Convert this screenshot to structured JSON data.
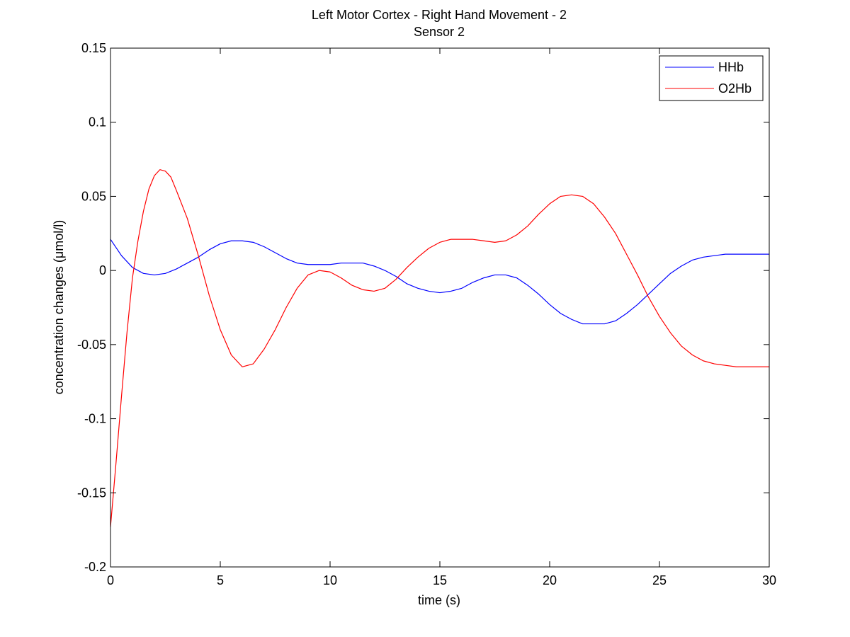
{
  "chart_data": {
    "type": "line",
    "title": "Left Motor Cortex - Right Hand Movement - 2",
    "subtitle": "Sensor 2",
    "xlabel": "time (s)",
    "ylabel": "concentration changes (μmol/l)",
    "xlim": [
      0,
      30
    ],
    "ylim": [
      -0.2,
      0.15
    ],
    "xticks": [
      0,
      5,
      10,
      15,
      20,
      25,
      30
    ],
    "xtick_labels": [
      "0",
      "5",
      "10",
      "15",
      "20",
      "25",
      "30"
    ],
    "yticks": [
      -0.2,
      -0.15,
      -0.1,
      -0.05,
      0,
      0.05,
      0.1,
      0.15
    ],
    "ytick_labels": [
      "-0.2",
      "-0.15",
      "-0.1",
      "-0.05",
      "0",
      "0.05",
      "0.1",
      "0.15"
    ],
    "grid": false,
    "legend_position": "top-right",
    "series": [
      {
        "name": "HHb",
        "color": "#0000ff",
        "points": [
          [
            0,
            0.021
          ],
          [
            0.5,
            0.01
          ],
          [
            1,
            0.002
          ],
          [
            1.5,
            -0.002
          ],
          [
            2,
            -0.003
          ],
          [
            2.5,
            -0.002
          ],
          [
            3,
            0.001
          ],
          [
            3.5,
            0.005
          ],
          [
            4,
            0.009
          ],
          [
            4.5,
            0.014
          ],
          [
            5,
            0.018
          ],
          [
            5.5,
            0.02
          ],
          [
            6,
            0.02
          ],
          [
            6.5,
            0.019
          ],
          [
            7,
            0.016
          ],
          [
            7.5,
            0.012
          ],
          [
            8,
            0.008
          ],
          [
            8.5,
            0.005
          ],
          [
            9,
            0.004
          ],
          [
            9.5,
            0.004
          ],
          [
            10,
            0.004
          ],
          [
            10.5,
            0.005
          ],
          [
            11,
            0.005
          ],
          [
            11.5,
            0.005
          ],
          [
            12,
            0.003
          ],
          [
            12.5,
            0
          ],
          [
            13,
            -0.004
          ],
          [
            13.5,
            -0.009
          ],
          [
            14,
            -0.012
          ],
          [
            14.5,
            -0.014
          ],
          [
            15,
            -0.015
          ],
          [
            15.5,
            -0.014
          ],
          [
            16,
            -0.012
          ],
          [
            16.5,
            -0.008
          ],
          [
            17,
            -0.005
          ],
          [
            17.5,
            -0.003
          ],
          [
            18,
            -0.003
          ],
          [
            18.5,
            -0.005
          ],
          [
            19,
            -0.01
          ],
          [
            19.5,
            -0.016
          ],
          [
            20,
            -0.023
          ],
          [
            20.5,
            -0.029
          ],
          [
            21,
            -0.033
          ],
          [
            21.5,
            -0.036
          ],
          [
            22,
            -0.036
          ],
          [
            22.5,
            -0.036
          ],
          [
            23,
            -0.034
          ],
          [
            23.5,
            -0.029
          ],
          [
            24,
            -0.023
          ],
          [
            24.5,
            -0.016
          ],
          [
            25,
            -0.009
          ],
          [
            25.5,
            -0.002
          ],
          [
            26,
            0.003
          ],
          [
            26.5,
            0.007
          ],
          [
            27,
            0.009
          ],
          [
            27.5,
            0.01
          ],
          [
            28,
            0.011
          ],
          [
            28.5,
            0.011
          ],
          [
            29,
            0.011
          ],
          [
            29.5,
            0.011
          ],
          [
            30,
            0.011
          ]
        ]
      },
      {
        "name": "O2Hb",
        "color": "#ff0000",
        "points": [
          [
            0,
            -0.173
          ],
          [
            0.25,
            -0.13
          ],
          [
            0.5,
            -0.085
          ],
          [
            0.75,
            -0.042
          ],
          [
            1,
            -0.005
          ],
          [
            1.25,
            0.02
          ],
          [
            1.5,
            0.04
          ],
          [
            1.75,
            0.055
          ],
          [
            2,
            0.064
          ],
          [
            2.25,
            0.068
          ],
          [
            2.5,
            0.067
          ],
          [
            2.75,
            0.063
          ],
          [
            3,
            0.054
          ],
          [
            3.5,
            0.035
          ],
          [
            4,
            0.01
          ],
          [
            4.5,
            -0.017
          ],
          [
            5,
            -0.04
          ],
          [
            5.5,
            -0.057
          ],
          [
            6,
            -0.065
          ],
          [
            6.5,
            -0.063
          ],
          [
            7,
            -0.053
          ],
          [
            7.5,
            -0.04
          ],
          [
            8,
            -0.025
          ],
          [
            8.5,
            -0.012
          ],
          [
            9,
            -0.003
          ],
          [
            9.5,
            0
          ],
          [
            10,
            -0.001
          ],
          [
            10.5,
            -0.005
          ],
          [
            11,
            -0.01
          ],
          [
            11.5,
            -0.013
          ],
          [
            12,
            -0.014
          ],
          [
            12.5,
            -0.012
          ],
          [
            13,
            -0.006
          ],
          [
            13.5,
            0.002
          ],
          [
            14,
            0.009
          ],
          [
            14.5,
            0.015
          ],
          [
            15,
            0.019
          ],
          [
            15.5,
            0.021
          ],
          [
            16,
            0.021
          ],
          [
            16.5,
            0.021
          ],
          [
            17,
            0.02
          ],
          [
            17.5,
            0.019
          ],
          [
            18,
            0.02
          ],
          [
            18.5,
            0.024
          ],
          [
            19,
            0.03
          ],
          [
            19.5,
            0.038
          ],
          [
            20,
            0.045
          ],
          [
            20.5,
            0.05
          ],
          [
            21,
            0.051
          ],
          [
            21.5,
            0.05
          ],
          [
            22,
            0.045
          ],
          [
            22.5,
            0.036
          ],
          [
            23,
            0.025
          ],
          [
            23.5,
            0.011
          ],
          [
            24,
            -0.003
          ],
          [
            24.5,
            -0.018
          ],
          [
            25,
            -0.031
          ],
          [
            25.5,
            -0.042
          ],
          [
            26,
            -0.051
          ],
          [
            26.5,
            -0.057
          ],
          [
            27,
            -0.061
          ],
          [
            27.5,
            -0.063
          ],
          [
            28,
            -0.064
          ],
          [
            28.5,
            -0.065
          ],
          [
            29,
            -0.065
          ],
          [
            29.5,
            -0.065
          ],
          [
            30,
            -0.065
          ]
        ]
      }
    ]
  }
}
